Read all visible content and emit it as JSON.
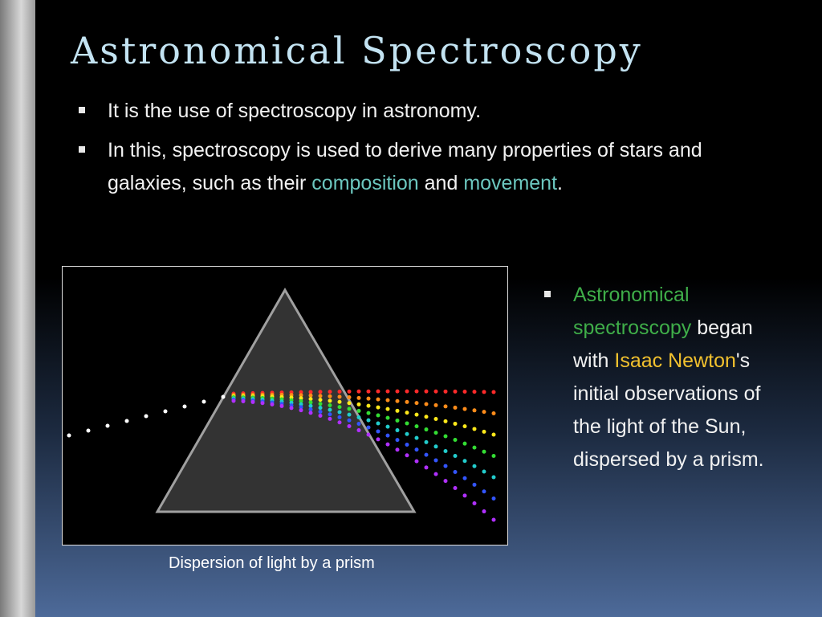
{
  "title": "Astronomical Spectroscopy",
  "bullets": [
    {
      "segments": [
        {
          "text": "It  is the use of spectroscopy in astronomy."
        }
      ]
    },
    {
      "segments": [
        {
          "text": "In this, spectroscopy is used to derive many properties of stars and galaxies, such as their "
        },
        {
          "text": "composition",
          "color": "#6cc7bf"
        },
        {
          "text": " and "
        },
        {
          "text": "movement",
          "color": "#6cc7bf"
        },
        {
          "text": "."
        }
      ]
    }
  ],
  "figure": {
    "caption": "Dispersion of light by a prism"
  },
  "side_bullet": {
    "segments": [
      {
        "text": "Astronomical spectroscopy",
        "color": "#3fae49"
      },
      {
        "text": " began with "
      },
      {
        "text": "Isaac Newton",
        "color": "#f2c12e"
      },
      {
        "text": "'s initial observations of the light of the Sun, dispersed by a prism."
      }
    ]
  }
}
